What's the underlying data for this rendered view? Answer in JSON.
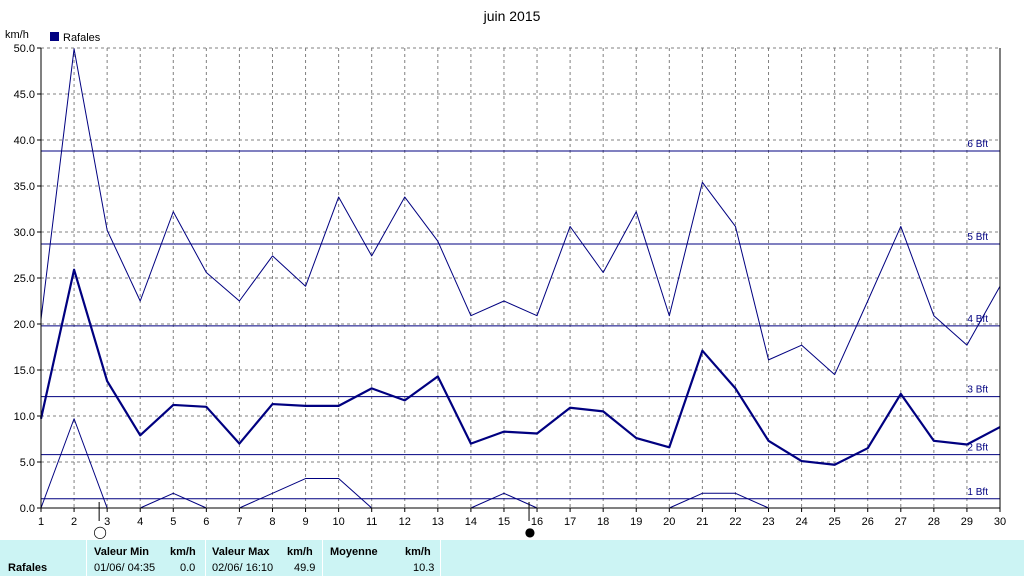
{
  "chart_data": {
    "type": "line",
    "title": "juin 2015",
    "ylabel": "km/h",
    "legend": "Rafales",
    "legend_placement": "top-left",
    "grid": true,
    "xlim": [
      1,
      30
    ],
    "ylim": [
      0,
      50
    ],
    "x": [
      1,
      2,
      3,
      4,
      5,
      6,
      7,
      8,
      9,
      10,
      11,
      12,
      13,
      14,
      15,
      16,
      17,
      18,
      19,
      20,
      21,
      22,
      23,
      24,
      25,
      26,
      27,
      28,
      29,
      30
    ],
    "x_tick_labels": [
      "1",
      "2",
      "3",
      "4",
      "5",
      "6",
      "7",
      "8",
      "9",
      "10",
      "11",
      "12",
      "13",
      "14",
      "15",
      "16",
      "17",
      "18",
      "19",
      "20",
      "21",
      "22",
      "23",
      "24",
      "25",
      "26",
      "27",
      "28",
      "29",
      "30"
    ],
    "y_tick_labels": [
      "0.0",
      "5.0",
      "10.0",
      "15.0",
      "20.0",
      "25.0",
      "30.0",
      "35.0",
      "40.0",
      "45.0",
      "50.0"
    ],
    "series": [
      {
        "role": "max",
        "values": [
          20.5,
          49.9,
          30.2,
          22.5,
          32.2,
          25.6,
          22.5,
          27.4,
          24.1,
          33.8,
          27.4,
          33.8,
          29.0,
          20.9,
          22.5,
          20.9,
          30.6,
          25.6,
          32.2,
          20.9,
          35.4,
          30.6,
          16.1,
          17.7,
          14.5,
          22.5,
          30.6,
          20.9,
          17.7,
          24.1
        ]
      },
      {
        "role": "mean",
        "values": [
          9.7,
          25.9,
          13.8,
          7.9,
          11.2,
          11.0,
          7.0,
          11.3,
          11.1,
          11.1,
          13.0,
          11.7,
          14.3,
          7.0,
          8.3,
          8.1,
          10.9,
          10.5,
          7.6,
          6.6,
          17.1,
          13.0,
          7.3,
          5.1,
          4.7,
          6.5,
          12.4,
          7.3,
          6.9,
          8.8
        ]
      },
      {
        "role": "min",
        "values": [
          0.0,
          9.7,
          0.0,
          0.0,
          1.6,
          0.0,
          0.0,
          1.6,
          3.2,
          3.2,
          0.0,
          0.0,
          0.0,
          0.0,
          1.6,
          0.0,
          0.0,
          0.0,
          0.0,
          0.0,
          1.6,
          1.6,
          0.0,
          0.0,
          0.0,
          0.0,
          0.0,
          0.0,
          0.0,
          0.0
        ]
      }
    ],
    "beaufort_lines": [
      {
        "label": "1 Bft",
        "value": 1.0
      },
      {
        "label": "2 Bft",
        "value": 5.8
      },
      {
        "label": "3 Bft",
        "value": 12.1
      },
      {
        "label": "4 Bft",
        "value": 19.8
      },
      {
        "label": "5 Bft",
        "value": 28.7
      },
      {
        "label": "6 Bft",
        "value": 38.8
      }
    ],
    "moon_phases": [
      {
        "day": 3,
        "symbol": "◯"
      },
      {
        "day": 16,
        "symbol": "●"
      }
    ],
    "colors": {
      "line": "#000080",
      "grid": "#808080",
      "footer_bg": "#ccf4f4"
    }
  },
  "footer": {
    "series_label": "Rafales",
    "min_header": "Valeur Min",
    "min_unit": "km/h",
    "min_date": "01/06/  04:35",
    "min_value": "0.0",
    "max_header": "Valeur Max",
    "max_unit": "km/h",
    "max_date": "02/06/  16:10",
    "max_value": "49.9",
    "avg_header": "Moyenne",
    "avg_unit": "km/h",
    "avg_value": "10.3"
  }
}
